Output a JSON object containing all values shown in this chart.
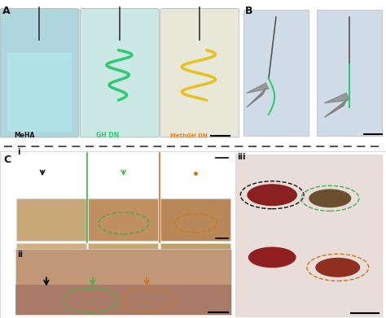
{
  "fig_width": 4.74,
  "fig_height": 3.91,
  "dpi": 100,
  "bg_color": "#ffffff",
  "panel_A_label": "A",
  "panel_B_label": "B",
  "panel_C_label": "C",
  "label_MeHA": "MeHA",
  "label_GHDN": "GH DN",
  "label_MethGHDN": "MethGH DN",
  "color_green": "#2ecc71",
  "color_orange": "#e67e22",
  "color_black": "#111111",
  "color_dashed_line": "#222222",
  "label_i": "i",
  "label_ii": "ii",
  "label_iii": "iii",
  "panel_A_bg": "#d8eef0",
  "panel_bottle1_bg": "#c8e8ec",
  "panel_bottle2_bg": "#e8f4f0",
  "panel_bottle3_bg": "#f0f0e8",
  "panel_B_bg": "#e0e8f0",
  "dashed_color": "#333333",
  "green_line_color": "#3db548",
  "orange_line_color": "#cc7722",
  "circle_black_dashed": "#111111",
  "circle_green_dashed": "#3db548",
  "circle_orange_dashed": "#cc7722"
}
